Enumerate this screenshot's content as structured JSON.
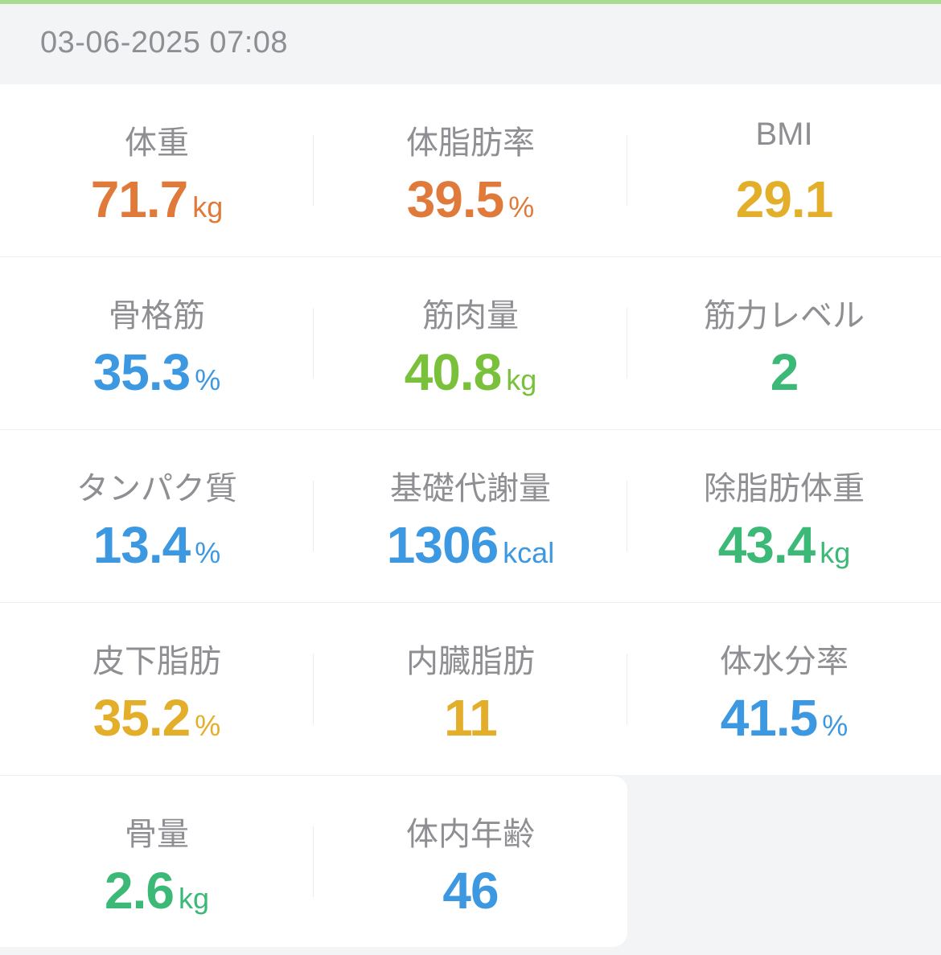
{
  "header": {
    "datetime": "03-06-2025 07:08"
  },
  "colors": {
    "top_bar": "#a9dc8f",
    "orange": "#e07a3a",
    "amber": "#e3ae2a",
    "blue": "#3d98e2",
    "lime": "#79c13b",
    "green": "#3cb977"
  },
  "metrics": [
    {
      "label": "体重",
      "value": "71.7",
      "unit": "kg"
    },
    {
      "label": "体脂肪率",
      "value": "39.5",
      "unit": "%"
    },
    {
      "label": "BMI",
      "value": "29.1",
      "unit": ""
    },
    {
      "label": "骨格筋",
      "value": "35.3",
      "unit": "%"
    },
    {
      "label": "筋肉量",
      "value": "40.8",
      "unit": "kg"
    },
    {
      "label": "筋力レベル",
      "value": "2",
      "unit": ""
    },
    {
      "label": "タンパク質",
      "value": "13.4",
      "unit": "%"
    },
    {
      "label": "基礎代謝量",
      "value": "1306",
      "unit": "kcal"
    },
    {
      "label": "除脂肪体重",
      "value": "43.4",
      "unit": "kg"
    },
    {
      "label": "皮下脂肪",
      "value": "35.2",
      "unit": "%"
    },
    {
      "label": "内臓脂肪",
      "value": "11",
      "unit": ""
    },
    {
      "label": "体水分率",
      "value": "41.5",
      "unit": "%"
    },
    {
      "label": "骨量",
      "value": "2.6",
      "unit": "kg"
    },
    {
      "label": "体内年齢",
      "value": "46",
      "unit": ""
    }
  ]
}
